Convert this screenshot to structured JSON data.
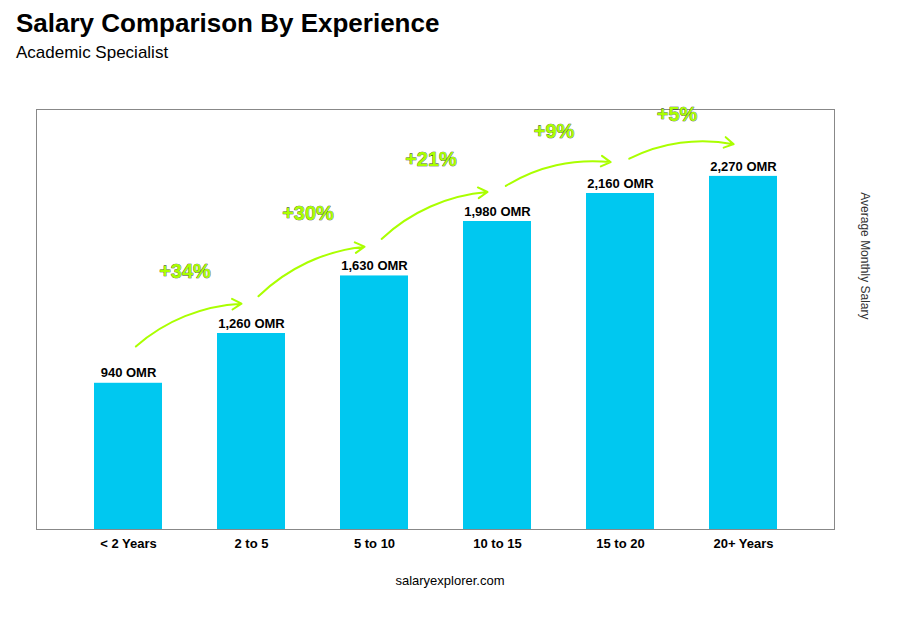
{
  "chart_data": {
    "type": "bar",
    "title": "Salary Comparison By Experience",
    "subtitle": "Academic Specialist",
    "ylabel": "Average Monthly Salary",
    "footer": "salaryexplorer.com",
    "categories": [
      "< 2 Years",
      "2 to 5",
      "5 to 10",
      "10 to 15",
      "15 to 20",
      "20+ Years"
    ],
    "values": [
      940,
      1260,
      1630,
      1980,
      2160,
      2270
    ],
    "value_labels": [
      "940 OMR",
      "1,260 OMR",
      "1,630 OMR",
      "1,980 OMR",
      "2,160 OMR",
      "2,270 OMR"
    ],
    "data_labels": true,
    "color": "#00c8f0",
    "annotations": [
      {
        "text": "+34%",
        "color": "#aaff00"
      },
      {
        "text": "+30%",
        "color": "#aaff00"
      },
      {
        "text": "+21%",
        "color": "#aaff00"
      },
      {
        "text": "+9%",
        "color": "#aaff00"
      },
      {
        "text": "+5%",
        "color": "#aaff00"
      }
    ],
    "ylim": [
      0,
      2700
    ],
    "yticks": [],
    "tick_labels": "x",
    "grid": false
  }
}
